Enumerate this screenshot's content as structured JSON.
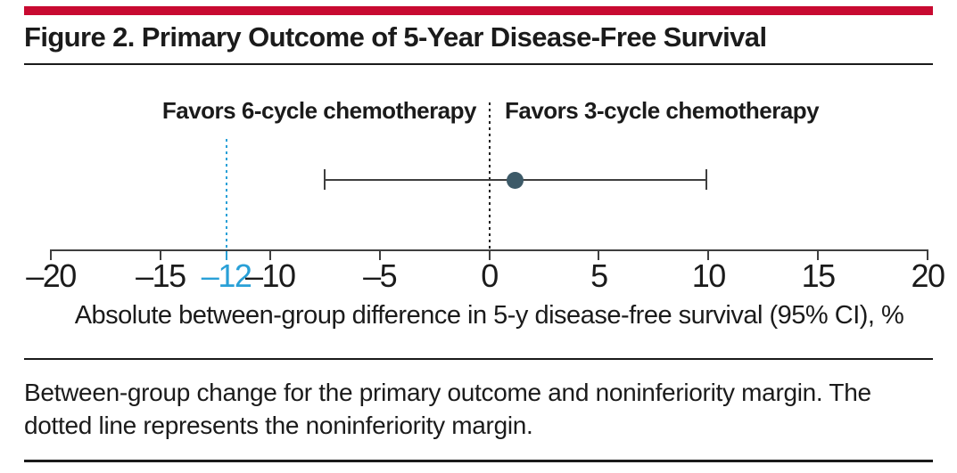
{
  "accent_color": "#c80a31",
  "figure": {
    "title": "Figure 2. Primary Outcome of 5-Year Disease-Free Survival",
    "caption": "Between-group change for the primary outcome and noninferiority margin. The dotted line represents the noninferiority margin."
  },
  "chart_data": {
    "type": "scatter",
    "subtype": "single-point-estimate-with-ci",
    "xlabel": "Absolute between-group difference in 5-y disease-free survival (95% CI), %",
    "xlim": [
      -20,
      20
    ],
    "x_ticks": [
      -20,
      -15,
      -12,
      -10,
      -5,
      0,
      5,
      10,
      15,
      20
    ],
    "highlighted_tick": -12,
    "point_estimate": 1.2,
    "ci_lower": -7.5,
    "ci_upper": 9.9,
    "reference_lines": [
      {
        "x": 0,
        "style": "dotted",
        "color": "#222222"
      },
      {
        "x": -12,
        "style": "dotted",
        "color": "#29a0d7"
      }
    ],
    "annotations": {
      "favors_left": "Favors 6-cycle chemotherapy",
      "favors_right": "Favors 3-cycle chemotherapy"
    },
    "colors": {
      "point": "#3d5a68",
      "line": "#3f3f3f",
      "highlight": "#29a0d7",
      "text": "#1b1b1b"
    }
  }
}
